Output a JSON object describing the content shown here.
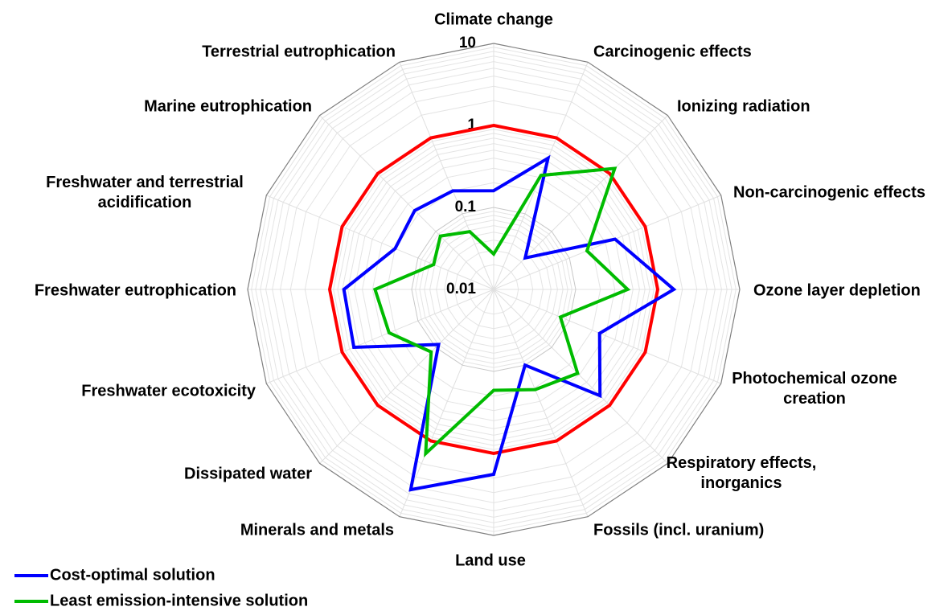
{
  "chart_data": {
    "type": "radar",
    "log_scale": true,
    "grid": true,
    "legend_position": "bottom-left",
    "categories": [
      "Climate change",
      "Carcinogenic effects",
      "Ionizing radiation",
      "Non-carcinogenic effects",
      "Ozone layer depletion",
      "Photochemical ozone creation",
      "Respiratory effects, inorganics",
      "Fossils (incl. uranium)",
      "Land use",
      "Minerals and metals",
      "Dissipated water",
      "Freshwater ecotoxicity",
      "Freshwater eutrophication",
      "Freshwater and terrestrial acidification",
      "Marine eutrophication",
      "Terrestrial eutrophication"
    ],
    "rlim": [
      0.01,
      10
    ],
    "rticks": [
      0.01,
      0.1,
      1,
      10
    ],
    "series": [
      {
        "color": "#ff0000",
        "values": [
          1,
          1,
          1,
          1,
          1,
          1,
          1,
          1,
          1,
          1,
          1,
          1,
          1,
          1,
          1,
          1
        ]
      },
      {
        "name": "Cost-optimal solution",
        "color": "#0000ff",
        "values": [
          0.16,
          0.54,
          0.035,
          0.4,
          1.57,
          0.25,
          0.68,
          0.1,
          1.8,
          4.4,
          0.089,
          0.7,
          0.67,
          0.2,
          0.23,
          0.2
        ]
      },
      {
        "name": "Least emission-intensive solution",
        "color": "#00bb00",
        "values": [
          0.027,
          0.32,
          1.22,
          0.17,
          0.43,
          0.076,
          0.28,
          0.21,
          0.17,
          1.47,
          0.12,
          0.24,
          0.28,
          0.062,
          0.083,
          0.058
        ]
      }
    ]
  }
}
